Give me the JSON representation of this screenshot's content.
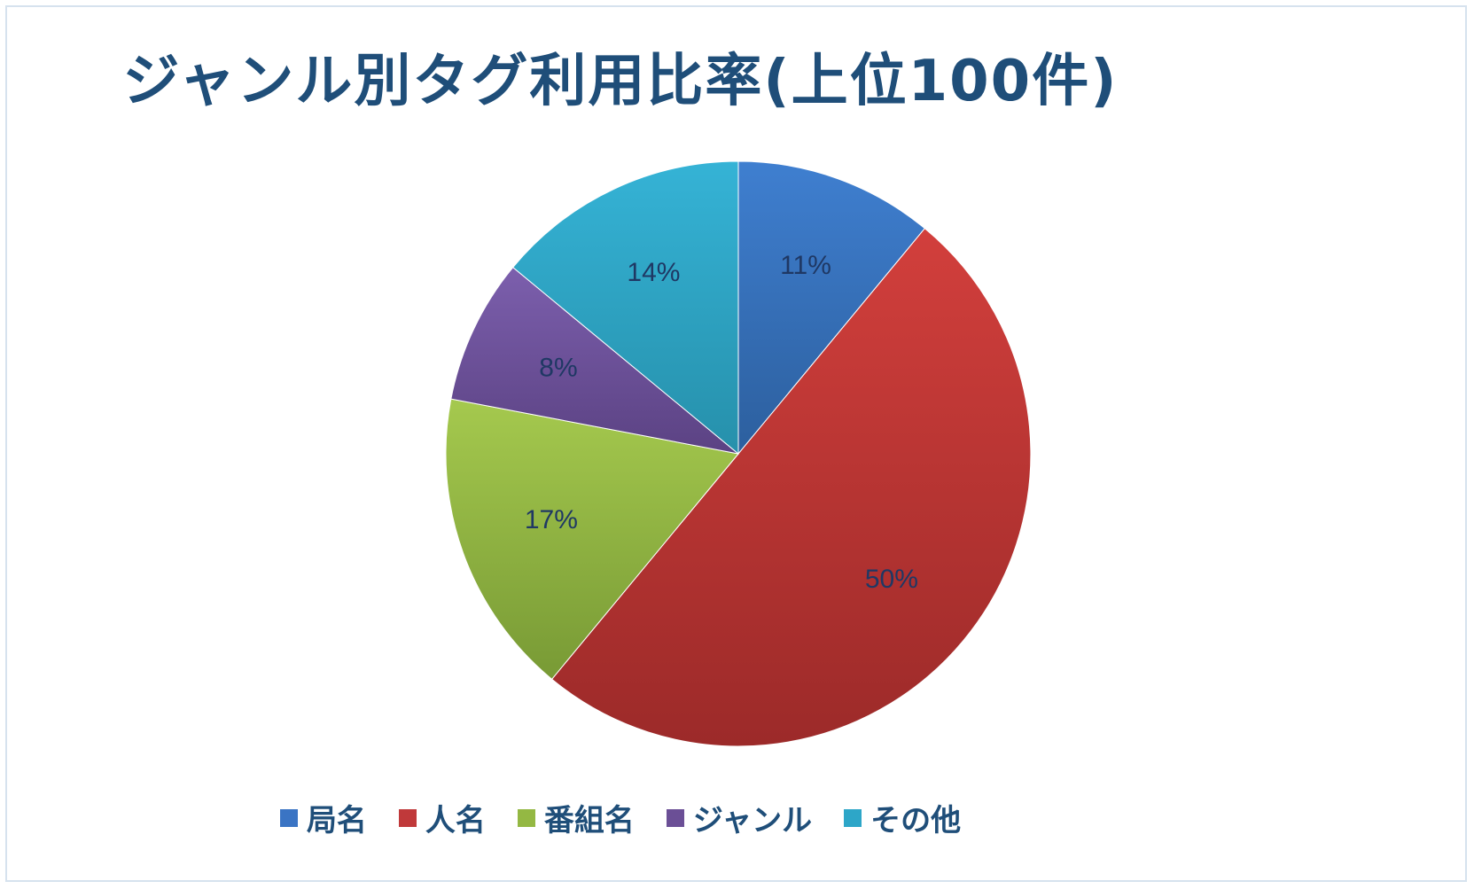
{
  "chart_data": {
    "type": "pie",
    "title": "ジャンル別タグ利用比率(上位100件)",
    "categories": [
      "局名",
      "人名",
      "番組名",
      "ジャンル",
      "その他"
    ],
    "values": [
      11,
      50,
      17,
      8,
      14
    ],
    "value_labels": [
      "11%",
      "50%",
      "17%",
      "8%",
      "14%"
    ],
    "colors": [
      "#3a74c4",
      "#c0393a",
      "#94b843",
      "#6b4f96",
      "#2da6c8"
    ],
    "legend_position": "bottom"
  }
}
